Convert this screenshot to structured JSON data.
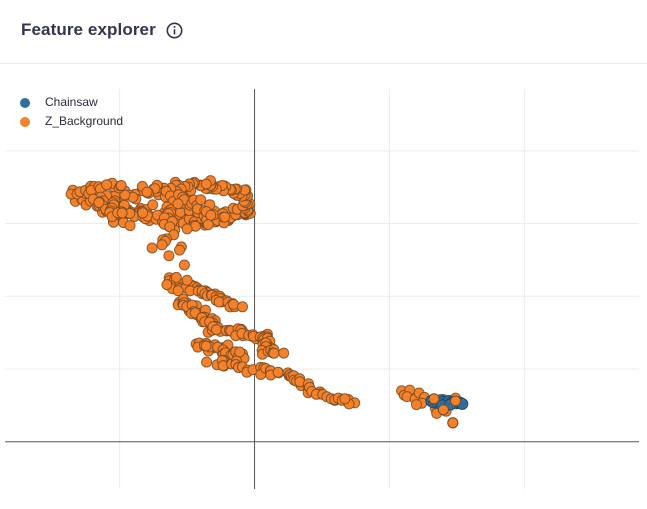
{
  "header": {
    "title": "Feature explorer",
    "info_icon": "info-circle-icon"
  },
  "chart_data": {
    "type": "scatter",
    "title": "Feature explorer",
    "xlabel": "",
    "ylabel": "",
    "xlim": [
      -18.5,
      28.5
    ],
    "ylim": [
      -6.5,
      48.5
    ],
    "xticks": [
      -10,
      0,
      10,
      20
    ],
    "yticks": [
      0,
      10,
      20,
      30,
      40
    ],
    "grid": true,
    "legend_position": "top-left",
    "series": [
      {
        "name": "Chainsaw",
        "color": "#2f6f9e",
        "x": [
          13.1,
          13.3,
          13.5,
          13.8,
          14.0,
          14.2,
          14.4,
          14.6,
          14.8,
          15.0,
          15.2,
          15.4,
          13.9,
          14.5
        ],
        "y": [
          5.6,
          5.4,
          5.5,
          5.7,
          5.5,
          5.3,
          5.6,
          5.4,
          5.5,
          5.3,
          5.4,
          5.2,
          5.0,
          5.1
        ]
      },
      {
        "name": "Z_Background",
        "color": "#f5822a",
        "segments": [
          {
            "from": [
              -13,
              33.5
            ],
            "to": [
              -9,
              31.5
            ],
            "n": 40,
            "spread": 0.7
          },
          {
            "from": [
              -9,
              31.5
            ],
            "to": [
              -4.5,
              30
            ],
            "n": 40,
            "spread": 0.7
          },
          {
            "from": [
              -4.5,
              30
            ],
            "to": [
              -0.8,
              31.5
            ],
            "n": 40,
            "spread": 0.7
          },
          {
            "from": [
              -0.8,
              31.5
            ],
            "to": [
              -1,
              34.5
            ],
            "n": 25,
            "spread": 0.6
          },
          {
            "from": [
              -1,
              34.5
            ],
            "to": [
              -4,
              35.5
            ],
            "n": 25,
            "spread": 0.6
          },
          {
            "from": [
              -4,
              35.5
            ],
            "to": [
              -7.5,
              34.5
            ],
            "n": 25,
            "spread": 0.6
          },
          {
            "from": [
              -7.5,
              34.5
            ],
            "to": [
              -10.5,
              33.5
            ],
            "n": 20,
            "spread": 0.7
          },
          {
            "from": [
              -6.5,
              34.0
            ],
            "to": [
              -6,
              26.5
            ],
            "n": 30,
            "spread": 1.0
          },
          {
            "from": [
              -13.5,
              34.3
            ],
            "to": [
              -10,
              35.0
            ],
            "n": 22,
            "spread": 0.55
          },
          {
            "from": [
              -11.5,
              33.5
            ],
            "to": [
              -9.5,
              30.5
            ],
            "n": 30,
            "spread": 0.9
          },
          {
            "from": [
              -5.5,
              33.5
            ],
            "to": [
              -2.5,
              30.5
            ],
            "n": 25,
            "spread": 0.9
          },
          {
            "from": [
              -6.4,
              22
            ],
            "to": [
              -3.5,
              20.5
            ],
            "n": 25,
            "spread": 0.5
          },
          {
            "from": [
              -3.5,
              20.5
            ],
            "to": [
              -1.2,
              18.5
            ],
            "n": 20,
            "spread": 0.5
          },
          {
            "from": [
              -5.5,
              19.5
            ],
            "to": [
              -3,
              15.5
            ],
            "n": 35,
            "spread": 0.7
          },
          {
            "from": [
              -3,
              15.5
            ],
            "to": [
              0.5,
              14.5
            ],
            "n": 25,
            "spread": 0.5
          },
          {
            "from": [
              0.5,
              14.5
            ],
            "to": [
              1.5,
              12.0
            ],
            "n": 25,
            "spread": 0.5
          },
          {
            "from": [
              -4,
              13.5
            ],
            "to": [
              -1,
              12.0
            ],
            "n": 30,
            "spread": 0.6
          },
          {
            "from": [
              -3,
              11.0
            ],
            "to": [
              2.5,
              9.2
            ],
            "n": 30,
            "spread": 0.45
          },
          {
            "from": [
              2.5,
              9.2
            ],
            "to": [
              5.5,
              6.0
            ],
            "n": 20,
            "spread": 0.35
          },
          {
            "from": [
              5.5,
              6.0
            ],
            "to": [
              7.5,
              5.3
            ],
            "n": 6,
            "spread": 0.3
          }
        ],
        "x": [
          -5.2,
          -5.8,
          -6.5,
          -5.0,
          6.2,
          6.5,
          7.0,
          6.7,
          10.9,
          11.1,
          11.5,
          11.3,
          11.9,
          12.2,
          12.6,
          12.4,
          12.0,
          13.3,
          13.4,
          14.2,
          14.6,
          14.9,
          14.0,
          13.5,
          14.7
        ],
        "y": [
          24.3,
          22.6,
          21.6,
          22.2,
          6.0,
          5.7,
          5.2,
          5.9,
          7.0,
          6.4,
          7.1,
          6.2,
          5.9,
          6.7,
          6.1,
          5.3,
          5.1,
          5.6,
          4.6,
          4.2,
          5.6,
          6.0,
          5.8,
          3.9,
          2.6
        ]
      }
    ]
  },
  "legend": {
    "items": [
      {
        "label": "Chainsaw",
        "color": "#2f6f9e"
      },
      {
        "label": "Z_Background",
        "color": "#f5822a"
      }
    ]
  }
}
